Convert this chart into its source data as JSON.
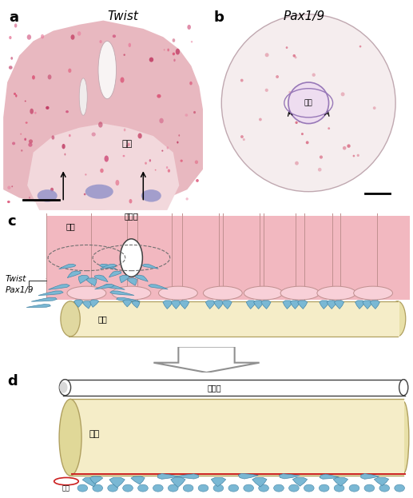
{
  "panel_a_label": "a",
  "panel_b_label": "b",
  "panel_c_label": "c",
  "panel_d_label": "d",
  "panel_a_title": "Twist",
  "panel_b_title": "Pax1/9",
  "label_fontsize": 13,
  "italic_fontsize": 11,
  "jp_fontsize": 7,
  "bg_color": "#ffffff",
  "somite_fill": "#f2b8c0",
  "somite_edge": "#c09090",
  "notochord_fill": "#f5edc8",
  "notochord_edge": "#b0a060",
  "neural_fill": "#ffffff",
  "neural_edge": "#404040",
  "blue_fill": "#7ab8d4",
  "blue_edge": "#4888a8",
  "blood_red": "#cc2020",
  "arrow_edge": "#909090",
  "text_color": "#202020",
  "twist_pax19": "Twist\nPax1/9"
}
